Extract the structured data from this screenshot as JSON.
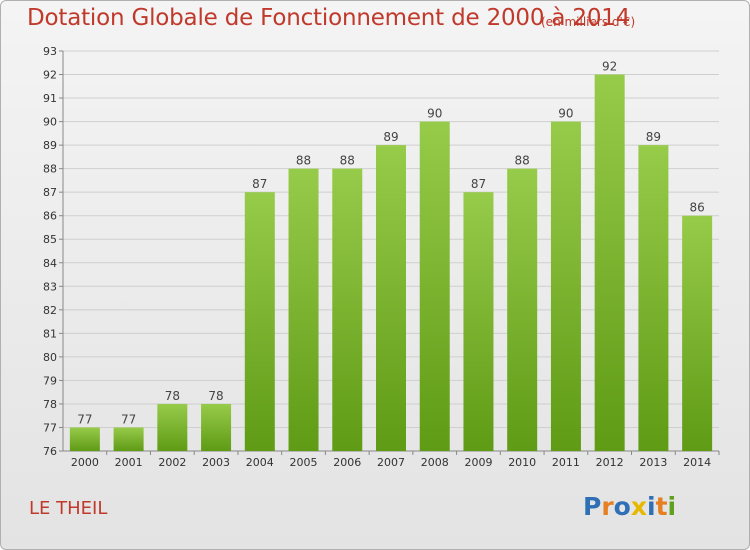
{
  "title": "Dotation Globale de Fonctionnement de 2000 à 2014",
  "subtitle": "(en milliers d'€)",
  "place": "LE THEIL",
  "logo_text": "Proxiti",
  "colors": {
    "title": "#c0392b",
    "bar_top": "#97cb4a",
    "bar_bottom": "#5f9b15",
    "axis_text": "#333333"
  },
  "chart_data": {
    "type": "bar",
    "title": "Dotation Globale de Fonctionnement de 2000 à 2014",
    "subtitle": "(en milliers d'€)",
    "categories": [
      "2000",
      "2001",
      "2002",
      "2003",
      "2004",
      "2005",
      "2006",
      "2007",
      "2008",
      "2009",
      "2010",
      "2011",
      "2012",
      "2013",
      "2014"
    ],
    "values": [
      77,
      77,
      78,
      78,
      87,
      88,
      88,
      89,
      90,
      87,
      88,
      90,
      92,
      89,
      86
    ],
    "ylim": [
      76,
      93
    ],
    "yticks": [
      76,
      77,
      78,
      79,
      80,
      81,
      82,
      83,
      84,
      85,
      86,
      87,
      88,
      89,
      90,
      91,
      92,
      93
    ],
    "grid": true
  }
}
